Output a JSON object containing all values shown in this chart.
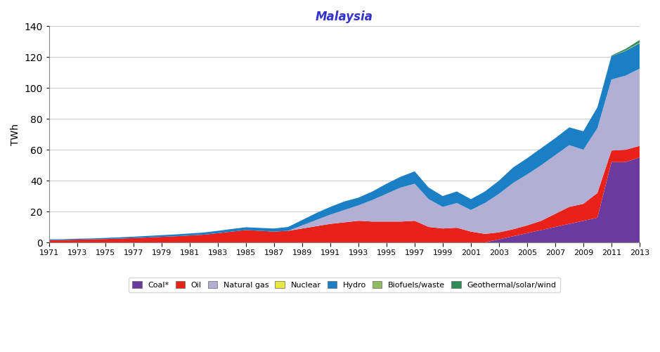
{
  "title": "Malaysia",
  "ylabel": "TWh",
  "years": [
    1971,
    1972,
    1973,
    1974,
    1975,
    1976,
    1977,
    1978,
    1979,
    1980,
    1981,
    1982,
    1983,
    1984,
    1985,
    1986,
    1987,
    1988,
    1989,
    1990,
    1991,
    1992,
    1993,
    1994,
    1995,
    1996,
    1997,
    1998,
    1999,
    2000,
    2001,
    2002,
    2003,
    2004,
    2005,
    2006,
    2007,
    2008,
    2009,
    2010,
    2011,
    2012,
    2013
  ],
  "coal": [
    0,
    0,
    0,
    0,
    0,
    0,
    0,
    0,
    0,
    0,
    0,
    0,
    0,
    0,
    0,
    0,
    0,
    0,
    0,
    0,
    0,
    0,
    0,
    0,
    0,
    0,
    0,
    0,
    0,
    0,
    0,
    0,
    2,
    4,
    6,
    8,
    10,
    12,
    14,
    16,
    52,
    52,
    55
  ],
  "oil": [
    1.5,
    1.6,
    1.8,
    2.0,
    2.2,
    2.5,
    2.8,
    3.2,
    3.6,
    4.0,
    4.5,
    5.0,
    6.0,
    7.0,
    8.0,
    7.5,
    7.0,
    7.5,
    9.0,
    10.5,
    12.0,
    13.0,
    14.0,
    13.5,
    13.5,
    13.5,
    14.0,
    10.0,
    9.0,
    9.5,
    7.0,
    5.5,
    4.5,
    4.5,
    5.0,
    6.0,
    8.5,
    11.0,
    11.0,
    16.0,
    7.5,
    8.0,
    7.5
  ],
  "natural_gas": [
    0,
    0,
    0,
    0,
    0,
    0,
    0,
    0,
    0,
    0,
    0,
    0,
    0,
    0,
    0,
    0,
    0,
    0,
    2,
    4,
    6,
    8,
    10,
    14,
    18,
    22,
    24,
    18,
    14,
    16,
    14,
    20,
    25,
    30,
    33,
    36,
    38,
    40,
    35,
    42,
    46,
    48,
    50
  ],
  "nuclear": [
    0,
    0,
    0,
    0,
    0,
    0,
    0,
    0,
    0,
    0,
    0,
    0,
    0,
    0,
    0,
    0,
    0,
    0,
    0,
    0,
    0,
    0,
    0,
    0,
    0,
    0,
    0,
    0,
    0,
    0,
    0,
    0,
    0,
    0,
    0,
    0,
    0,
    0,
    0,
    0,
    0,
    0,
    0
  ],
  "hydro": [
    0.5,
    0.5,
    0.6,
    0.6,
    0.7,
    0.8,
    0.9,
    1.0,
    1.1,
    1.2,
    1.3,
    1.4,
    1.5,
    1.7,
    1.8,
    1.9,
    2.0,
    2.5,
    3.5,
    4.5,
    5.0,
    5.5,
    5.0,
    5.5,
    6.5,
    7.0,
    8.0,
    7.5,
    7.0,
    7.5,
    7.0,
    7.5,
    8.5,
    10.0,
    10.5,
    11.0,
    11.0,
    11.5,
    12.0,
    13.5,
    15.0,
    16.0,
    16.5
  ],
  "biofuels": [
    0,
    0,
    0,
    0,
    0,
    0,
    0,
    0,
    0,
    0,
    0,
    0,
    0,
    0,
    0,
    0,
    0,
    0,
    0,
    0,
    0,
    0,
    0,
    0,
    0,
    0,
    0,
    0,
    0,
    0,
    0,
    0,
    0,
    0,
    0,
    0,
    0,
    0,
    0,
    0,
    0,
    0.3,
    0.5
  ],
  "geothermal": [
    0,
    0,
    0,
    0,
    0,
    0,
    0,
    0,
    0,
    0,
    0,
    0,
    0,
    0,
    0,
    0,
    0,
    0,
    0,
    0,
    0,
    0,
    0,
    0,
    0,
    0,
    0,
    0,
    0,
    0,
    0,
    0,
    0,
    0,
    0,
    0,
    0,
    0,
    0,
    0,
    0.5,
    1.0,
    1.5
  ],
  "colors": {
    "coal": "#6b3a9e",
    "oil": "#e8221a",
    "natural_gas": "#b3aed4",
    "nuclear": "#e8e840",
    "hydro": "#1a7fc4",
    "biofuels": "#8fba5e",
    "geothermal": "#2d8b57"
  },
  "ylim": [
    0,
    140
  ],
  "title_color": "#3333cc",
  "title_fontsize": 12,
  "legend_labels": [
    "Coal*",
    "Oil",
    "Natural gas",
    "Nuclear",
    "Hydro",
    "Biofuels/waste",
    "Geothermal/solar/wind"
  ]
}
